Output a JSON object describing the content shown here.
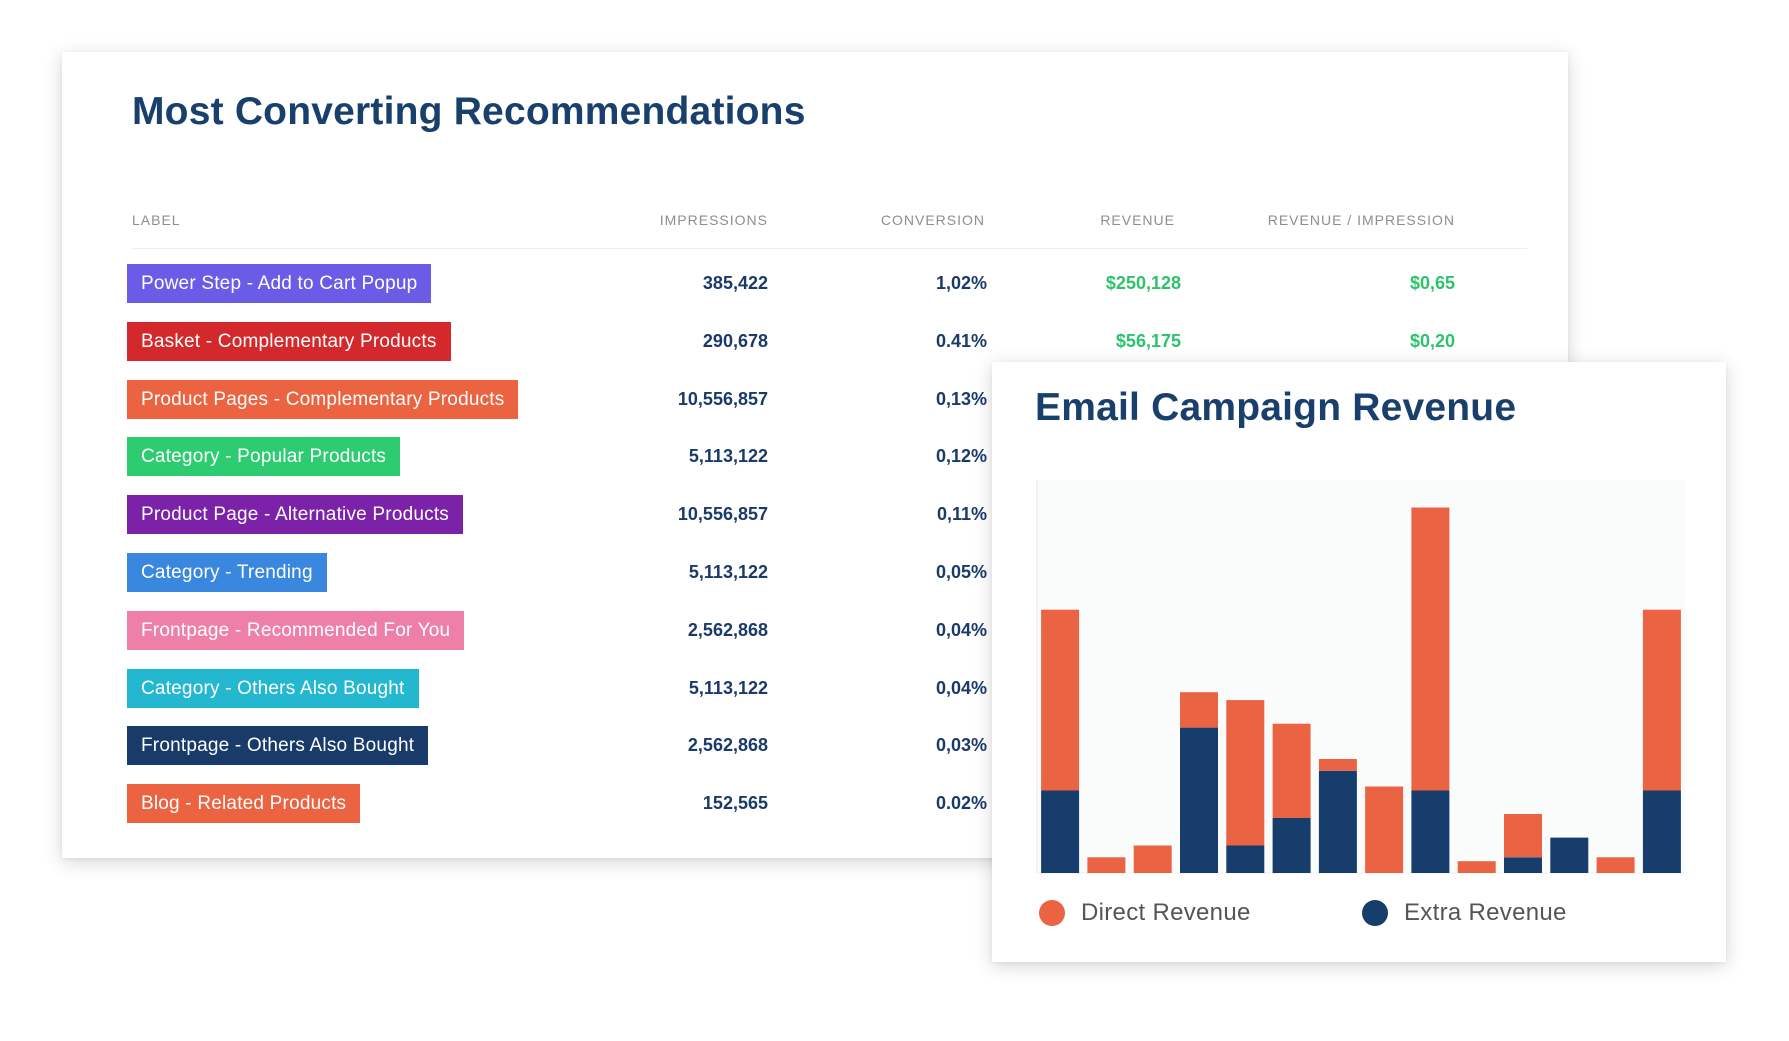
{
  "table": {
    "title": "Most Converting Recommendations",
    "columns": {
      "label": "LABEL",
      "impressions": "IMPRESSIONS",
      "conversion": "CONVERSION",
      "revenue": "REVENUE",
      "revenue_per_impression": "REVENUE / IMPRESSION"
    },
    "rows": [
      {
        "label": "Power Step - Add to Cart Popup",
        "color": "#6b5ce7",
        "impressions": "385,422",
        "conversion": "1,02%",
        "revenue": "$250,128",
        "rpi": "$0,65"
      },
      {
        "label": "Basket - Complementary Products",
        "color": "#d3292d",
        "impressions": "290,678",
        "conversion": "0.41%",
        "revenue": "$56,175",
        "rpi": "$0,20"
      },
      {
        "label": "Product Pages - Complementary Products",
        "color": "#eb6340",
        "impressions": "10,556,857",
        "conversion": "0,13%",
        "revenue": "",
        "rpi": ""
      },
      {
        "label": "Category - Popular Products",
        "color": "#2ecc71",
        "impressions": "5,113,122",
        "conversion": "0,12%",
        "revenue": "",
        "rpi": ""
      },
      {
        "label": "Product Page - Alternative Products",
        "color": "#7b22a8",
        "impressions": "10,556,857",
        "conversion": "0,11%",
        "revenue": "",
        "rpi": ""
      },
      {
        "label": "Category - Trending",
        "color": "#3a87e0",
        "impressions": "5,113,122",
        "conversion": "0,05%",
        "revenue": "",
        "rpi": ""
      },
      {
        "label": "Frontpage - Recommended For You",
        "color": "#ee80a8",
        "impressions": "2,562,868",
        "conversion": "0,04%",
        "revenue": "",
        "rpi": ""
      },
      {
        "label": "Category - Others Also Bought",
        "color": "#24b7d0",
        "impressions": "5,113,122",
        "conversion": "0,04%",
        "revenue": "",
        "rpi": ""
      },
      {
        "label": "Frontpage - Others Also Bought",
        "color": "#193b69",
        "impressions": "2,562,868",
        "conversion": "0,03%",
        "revenue": "",
        "rpi": ""
      },
      {
        "label": "Blog - Related Products",
        "color": "#eb6340",
        "impressions": "152,565",
        "conversion": "0.02%",
        "revenue": "",
        "rpi": ""
      }
    ]
  },
  "chart_data": {
    "type": "bar",
    "stacked": true,
    "title": "Email Campaign Revenue",
    "xlabel": "",
    "ylabel": "",
    "ylim": [
      0,
      100
    ],
    "grid": false,
    "legend_position": "bottom",
    "series": [
      {
        "name": "Extra Revenue",
        "color": "#173d6c",
        "values": [
          21,
          0,
          0,
          37,
          7,
          14,
          26,
          0,
          21,
          0,
          4,
          9,
          0,
          21
        ]
      },
      {
        "name": "Direct Revenue",
        "color": "#ea6343",
        "values": [
          46,
          4,
          7,
          9,
          37,
          24,
          3,
          22,
          72,
          3,
          11,
          0,
          4,
          46
        ]
      }
    ]
  }
}
